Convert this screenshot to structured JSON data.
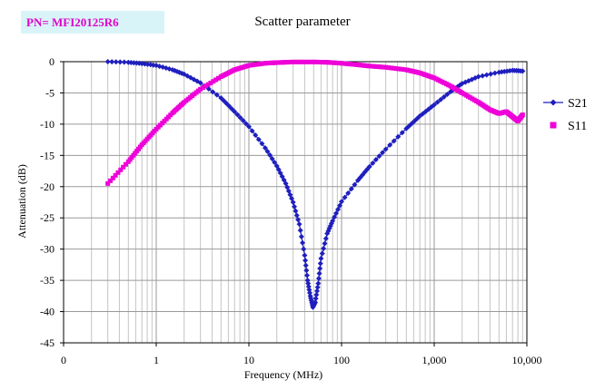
{
  "part_number": "PN= MFI20125R6",
  "chart_data": {
    "type": "line",
    "title": "Scatter parameter",
    "xlabel": "Frequency (MHz)",
    "ylabel": "Attenuation (dB)",
    "x_scale": "log",
    "xlim": [
      0.1,
      10000
    ],
    "ylim": [
      -45,
      0
    ],
    "x_tick_labels": [
      "0",
      "1",
      "10",
      "100",
      "1,000",
      "10,000"
    ],
    "x_tick_values": [
      0.1,
      1,
      10,
      100,
      1000,
      10000
    ],
    "y_ticks": [
      0,
      -5,
      -10,
      -15,
      -20,
      -25,
      -30,
      -35,
      -40,
      -45
    ],
    "grid": true,
    "legend_position": "right",
    "series": [
      {
        "name": "S21",
        "color": "#1f1fbf",
        "marker": "diamond",
        "x": [
          0.3,
          0.5,
          0.7,
          1,
          1.5,
          2,
          3,
          5,
          7,
          10,
          15,
          20,
          25,
          30,
          35,
          40,
          43,
          46,
          49,
          52,
          56,
          60,
          70,
          80,
          100,
          150,
          200,
          300,
          500,
          700,
          1000,
          1500,
          2000,
          3000,
          5000,
          7000,
          9000
        ],
        "y": [
          0,
          -0.1,
          -0.3,
          -0.6,
          -1.3,
          -2,
          -3.4,
          -5.8,
          -8,
          -10.4,
          -13.8,
          -16.7,
          -19.5,
          -22.5,
          -26,
          -31,
          -35,
          -37.5,
          -39.3,
          -38.5,
          -35.5,
          -31.5,
          -27.5,
          -25.5,
          -22.4,
          -19,
          -16.8,
          -14,
          -10.7,
          -8.7,
          -6.9,
          -4.8,
          -3.5,
          -2.4,
          -1.7,
          -1.4,
          -1.5
        ]
      },
      {
        "name": "S11",
        "color": "#ee00d8",
        "marker": "square",
        "x": [
          0.3,
          0.5,
          0.7,
          1,
          1.5,
          2,
          3,
          5,
          7,
          10,
          15,
          20,
          30,
          50,
          70,
          100,
          150,
          200,
          300,
          500,
          700,
          1000,
          1500,
          2000,
          3000,
          4000,
          5000,
          6000,
          7000,
          8000,
          9000
        ],
        "y": [
          -19.5,
          -16,
          -13.3,
          -10.8,
          -8.2,
          -6.5,
          -4.4,
          -2.4,
          -1.3,
          -0.6,
          -0.25,
          -0.15,
          -0.05,
          -0.05,
          -0.1,
          -0.25,
          -0.5,
          -0.7,
          -0.9,
          -1.3,
          -1.8,
          -2.6,
          -3.9,
          -5,
          -6.5,
          -7.7,
          -8.3,
          -8,
          -8.8,
          -9.5,
          -8.5
        ]
      }
    ]
  }
}
